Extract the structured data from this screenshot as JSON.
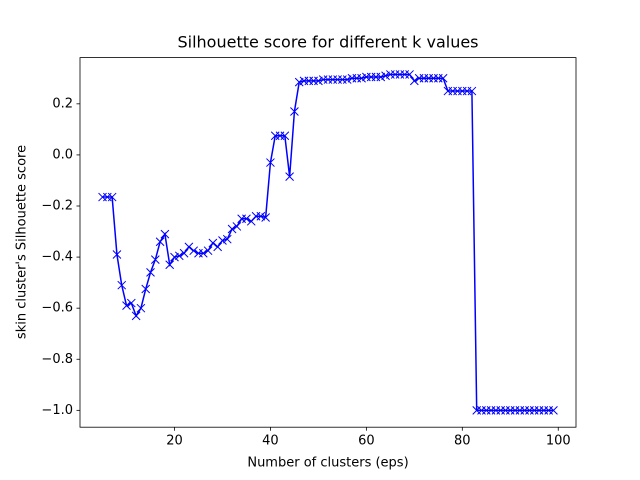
{
  "chart_data": {
    "type": "line",
    "title": "Silhouette score for different k values",
    "x_label": "Number of clusters (eps)",
    "y_label": "skin cluster's Silhouette score",
    "color": "#0000ff",
    "marker": "x",
    "x": [
      5,
      6,
      7,
      8,
      9,
      10,
      11,
      12,
      13,
      14,
      15,
      16,
      17,
      18,
      19,
      20,
      21,
      22,
      23,
      24,
      25,
      26,
      27,
      28,
      29,
      30,
      31,
      32,
      33,
      34,
      35,
      36,
      37,
      38,
      39,
      40,
      41,
      42,
      43,
      44,
      45,
      46,
      47,
      48,
      49,
      50,
      51,
      52,
      53,
      54,
      55,
      56,
      57,
      58,
      59,
      60,
      61,
      62,
      63,
      64,
      65,
      66,
      67,
      68,
      69,
      70,
      71,
      72,
      73,
      74,
      75,
      76,
      77,
      78,
      79,
      80,
      81,
      82,
      83,
      84,
      85,
      86,
      87,
      88,
      89,
      90,
      91,
      92,
      93,
      94,
      95,
      96,
      97,
      98,
      99
    ],
    "values": [
      -0.165,
      -0.165,
      -0.165,
      -0.39,
      -0.51,
      -0.59,
      -0.58,
      -0.63,
      -0.6,
      -0.525,
      -0.46,
      -0.41,
      -0.34,
      -0.31,
      -0.43,
      -0.4,
      -0.395,
      -0.385,
      -0.36,
      -0.375,
      -0.385,
      -0.385,
      -0.375,
      -0.345,
      -0.36,
      -0.335,
      -0.33,
      -0.29,
      -0.28,
      -0.25,
      -0.25,
      -0.26,
      -0.24,
      -0.24,
      -0.245,
      -0.03,
      0.075,
      0.075,
      0.075,
      -0.085,
      0.17,
      0.285,
      0.29,
      0.29,
      0.29,
      0.29,
      0.295,
      0.295,
      0.295,
      0.295,
      0.295,
      0.295,
      0.3,
      0.3,
      0.3,
      0.305,
      0.305,
      0.305,
      0.305,
      0.31,
      0.315,
      0.315,
      0.315,
      0.315,
      0.315,
      0.29,
      0.3,
      0.3,
      0.3,
      0.3,
      0.3,
      0.3,
      0.25,
      0.25,
      0.25,
      0.25,
      0.25,
      0.25,
      -1.0,
      -1.0,
      -1.0,
      -1.0,
      -1.0,
      -1.0,
      -1.0,
      -1.0,
      -1.0,
      -1.0,
      -1.0,
      -1.0,
      -1.0,
      -1.0,
      -1.0,
      -1.0,
      -1.0
    ],
    "xlim": [
      0.3,
      103.7
    ],
    "ylim": [
      -1.066,
      0.381
    ],
    "xticks": [
      20,
      40,
      60,
      80,
      100
    ],
    "yticks": [
      {
        "value": -1.0,
        "label": "−1.0"
      },
      {
        "value": -0.8,
        "label": "−0.8"
      },
      {
        "value": -0.6,
        "label": "−0.6"
      },
      {
        "value": -0.4,
        "label": "−0.4"
      },
      {
        "value": -0.2,
        "label": "−0.2"
      },
      {
        "value": 0.0,
        "label": "0.0"
      },
      {
        "value": 0.2,
        "label": "0.2"
      }
    ],
    "grid": false
  }
}
